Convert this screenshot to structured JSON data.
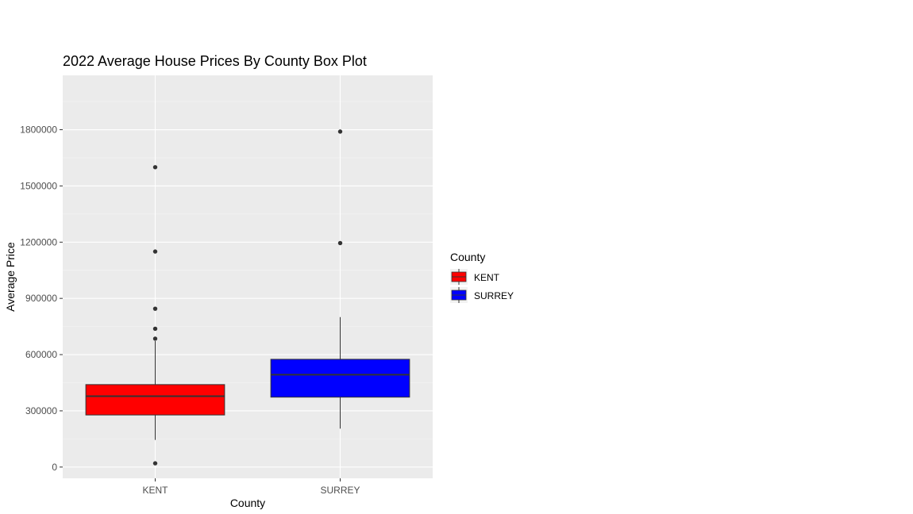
{
  "chart_data": {
    "type": "box",
    "title": "2022 Average House Prices By County Box Plot",
    "xlabel": "County",
    "ylabel": "Average Price",
    "ylim": [
      -60000,
      2090000
    ],
    "yticks": [
      0,
      300000,
      600000,
      900000,
      1200000,
      1500000,
      1800000
    ],
    "ytick_labels": [
      "0",
      "300000",
      "600000",
      "900000",
      "1200000",
      "1500000",
      "1800000"
    ],
    "categories": [
      "KENT",
      "SURREY"
    ],
    "grid": true,
    "legend": {
      "title": "County",
      "position": "right",
      "entries": [
        {
          "label": "KENT",
          "color": "#ff0000"
        },
        {
          "label": "SURREY",
          "color": "#0000ff"
        }
      ]
    },
    "boxes": [
      {
        "category": "KENT",
        "color": "#ff0000",
        "whisker_low": 145000,
        "q1": 278000,
        "median": 378000,
        "q3": 440000,
        "whisker_high": 672000,
        "outliers": [
          20000,
          685000,
          738000,
          845000,
          1150000,
          1600000
        ]
      },
      {
        "category": "SURREY",
        "color": "#0000ff",
        "whisker_low": 205000,
        "q1": 373000,
        "median": 493000,
        "q3": 575000,
        "whisker_high": 800000,
        "outliers": [
          1195000,
          1790000
        ]
      }
    ]
  }
}
